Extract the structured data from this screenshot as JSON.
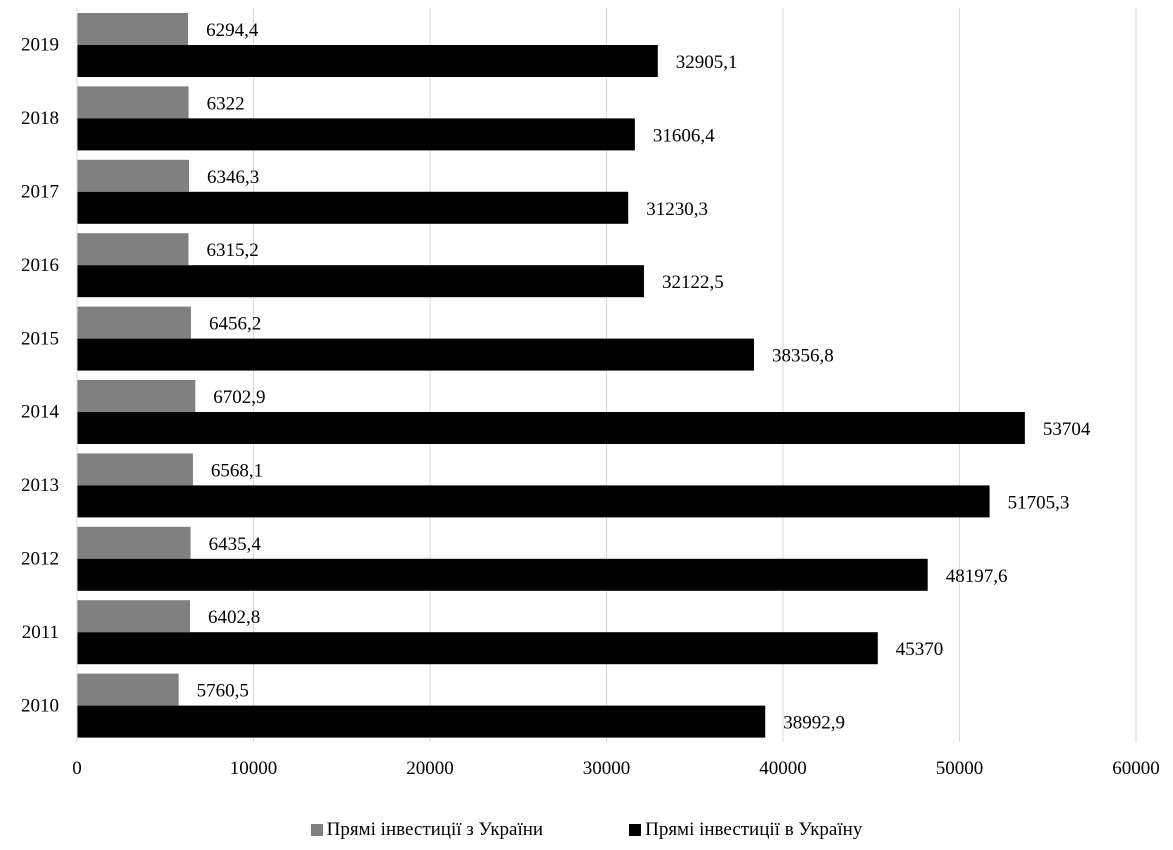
{
  "chart_data": {
    "type": "bar",
    "orientation": "horizontal",
    "categories": [
      "2010",
      "2011",
      "2012",
      "2013",
      "2014",
      "2015",
      "2016",
      "2017",
      "2018",
      "2019"
    ],
    "series": [
      {
        "name": "Прямі інвестиції з України",
        "color": "#808080",
        "values": [
          5760.5,
          6402.8,
          6435.4,
          6568.1,
          6702.9,
          6456.2,
          6315.2,
          6346.3,
          6322,
          6294.4
        ],
        "labels": [
          "5760,5",
          "6402,8",
          "6435,4",
          "6568,1",
          "6702,9",
          "6456,2",
          "6315,2",
          "6346,3",
          "6322",
          "6294,4"
        ]
      },
      {
        "name": "Прямі інвестиції в Україну",
        "color": "#000000",
        "values": [
          38992.9,
          45370,
          48197.6,
          51705.3,
          53704,
          38356.8,
          32122.5,
          31230.3,
          31606.4,
          32905.1
        ],
        "labels": [
          "38992,9",
          "45370",
          "48197,6",
          "51705,3",
          "53704",
          "38356,8",
          "32122,5",
          "31230,3",
          "31606,4",
          "32905,1"
        ]
      }
    ],
    "xlim": [
      0,
      60000
    ],
    "xticks": [
      "0",
      "10000",
      "20000",
      "30000",
      "40000",
      "50000",
      "60000"
    ],
    "grid": "vertical",
    "legend": "bottom",
    "title": "",
    "xlabel": "",
    "ylabel": ""
  }
}
